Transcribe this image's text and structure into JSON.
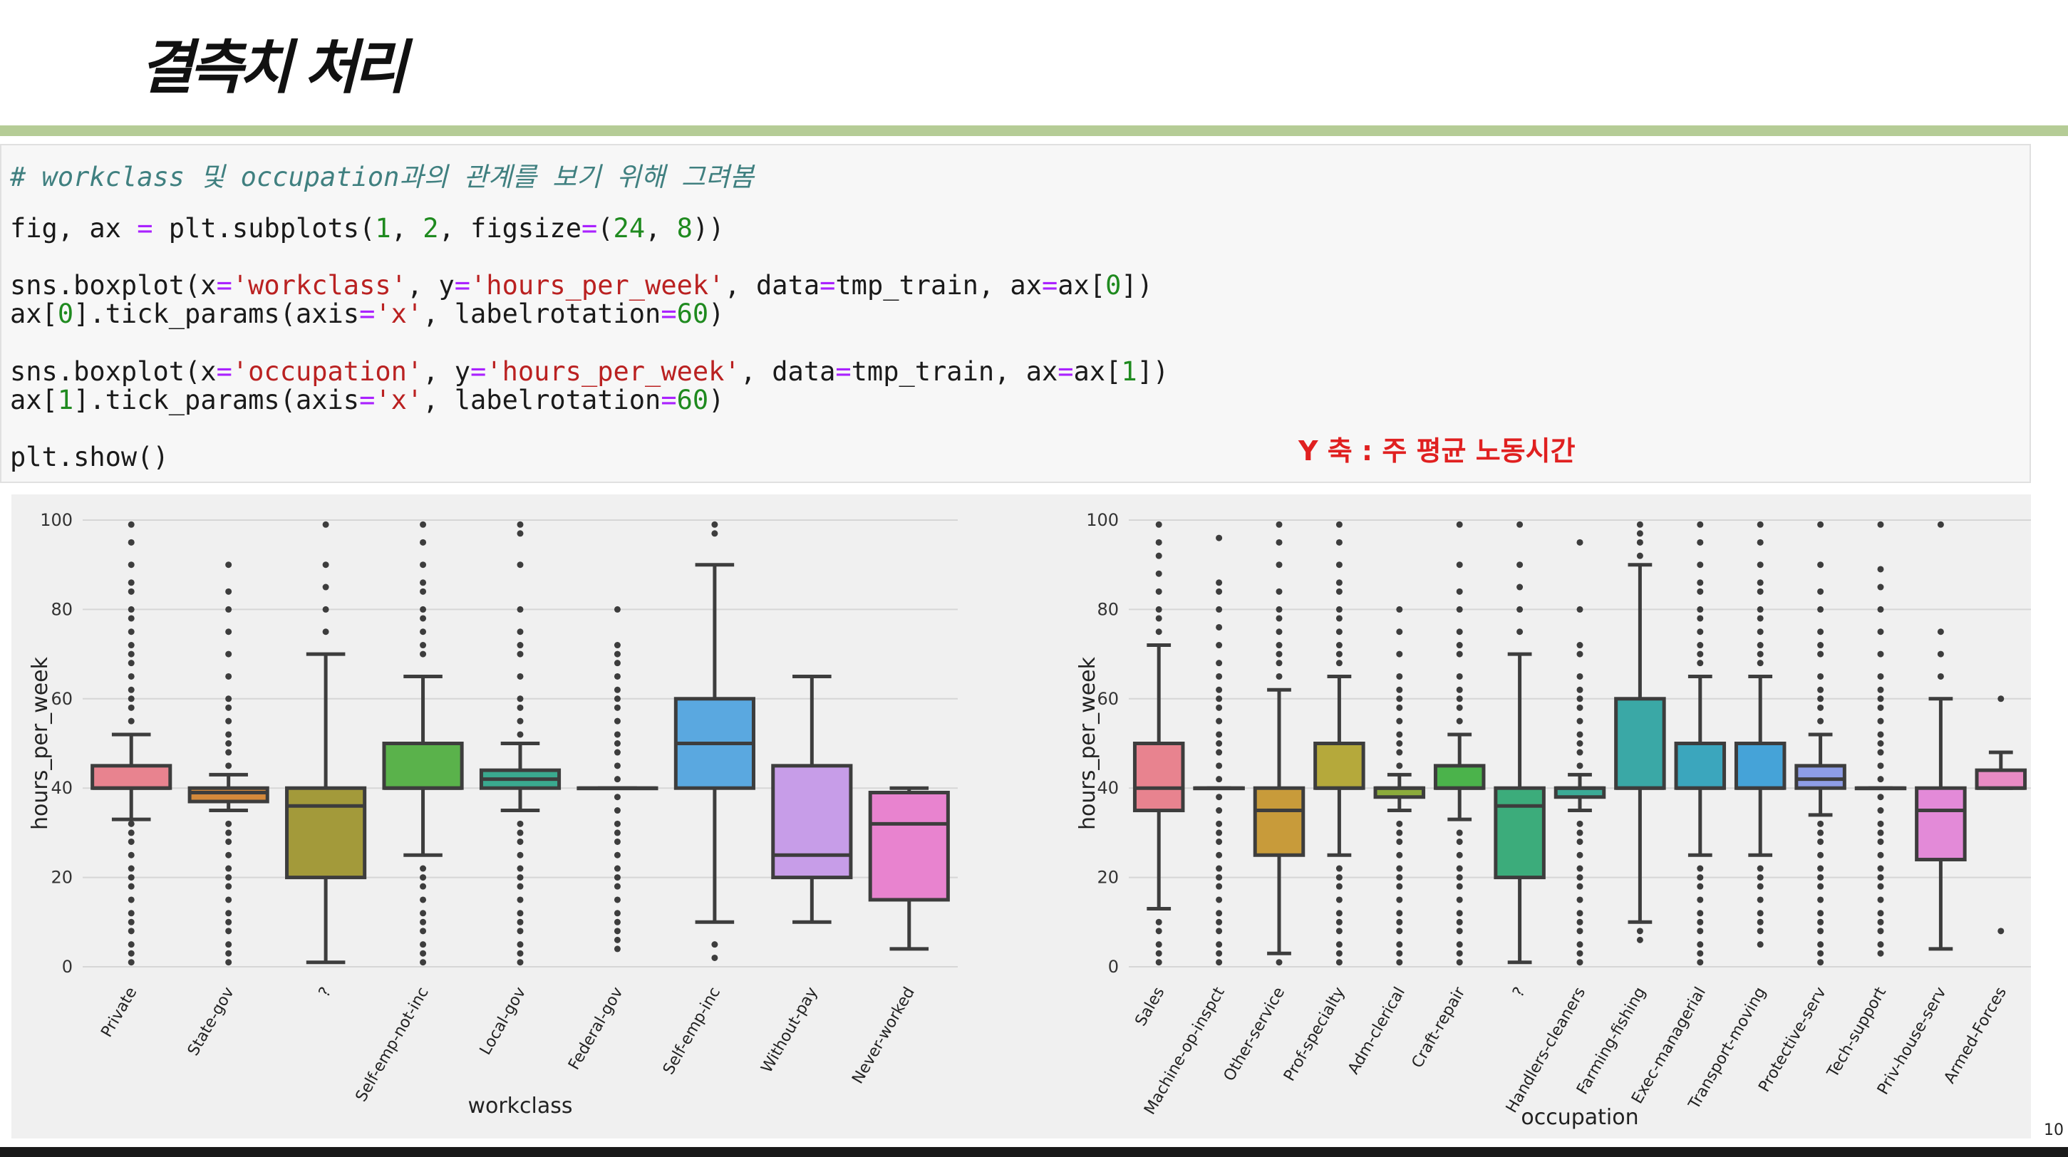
{
  "slide": {
    "title": "결측치 처리",
    "annotation": "Y 축 : 주 평균 노동시간",
    "page_number": "10"
  },
  "code": {
    "comment": "# workclass 및 occupation과의 관계를 보기 위해 그려봄",
    "line2": {
      "a": "fig, ax ",
      "eq": "=",
      "b": " plt.subplots(",
      "n1": "1",
      "c": ", ",
      "n2": "2",
      "d": ", figsize",
      "eq2": "=",
      "e": "(",
      "n3": "24",
      "f": ", ",
      "n4": "8",
      "g": "))"
    },
    "line3": {
      "a": "sns.boxplot(x",
      "eq": "=",
      "s1": "'workclass'",
      "b": ", y",
      "eq2": "=",
      "s2": "'hours_per_week'",
      "c": ", data",
      "eq3": "=",
      "d": "tmp_train, ax",
      "eq4": "=",
      "e": "ax[",
      "n": "0",
      "f": "])"
    },
    "line4": {
      "a": "ax[",
      "n": "0",
      "b": "].tick_params(axis",
      "eq": "=",
      "s": "'x'",
      "c": ", labelrotation",
      "eq2": "=",
      "n2": "60",
      "d": ")"
    },
    "line5": {
      "a": "sns.boxplot(x",
      "eq": "=",
      "s1": "'occupation'",
      "b": ", y",
      "eq2": "=",
      "s2": "'hours_per_week'",
      "c": ", data",
      "eq3": "=",
      "d": "tmp_train, ax",
      "eq4": "=",
      "e": "ax[",
      "n": "1",
      "f": "])"
    },
    "line6": {
      "a": "ax[",
      "n": "1",
      "b": "].tick_params(axis",
      "eq": "=",
      "s": "'x'",
      "c": ", labelrotation",
      "eq2": "=",
      "n2": "60",
      "d": ")"
    },
    "line7": "plt.show()"
  },
  "chart_data": [
    {
      "type": "box",
      "xlabel": "workclass",
      "ylabel": "hours_per_week",
      "ylim": [
        0,
        100
      ],
      "yticks": [
        0,
        20,
        40,
        60,
        80,
        100
      ],
      "grid": true,
      "categories": [
        "Private",
        "State-gov",
        "?",
        "Self-emp-not-inc",
        "Local-gov",
        "Federal-gov",
        "Self-emp-inc",
        "Without-pay",
        "Never-worked"
      ],
      "boxes": [
        {
          "q1": 40,
          "median": 40,
          "q3": 45,
          "whisker_low": 33,
          "whisker_high": 52,
          "color": "#e8838f",
          "outliers": [
            1,
            3,
            5,
            8,
            10,
            12,
            15,
            18,
            20,
            22,
            25,
            28,
            30,
            32,
            55,
            58,
            60,
            62,
            65,
            68,
            70,
            72,
            75,
            78,
            80,
            84,
            86,
            90,
            95,
            99
          ]
        },
        {
          "q1": 37,
          "median": 39,
          "q3": 40,
          "whisker_low": 35,
          "whisker_high": 43,
          "color": "#d4893b",
          "outliers": [
            1,
            3,
            5,
            8,
            10,
            12,
            15,
            18,
            20,
            22,
            25,
            28,
            30,
            32,
            45,
            48,
            50,
            52,
            55,
            58,
            60,
            65,
            70,
            75,
            80,
            84,
            90
          ]
        },
        {
          "q1": 20,
          "median": 36,
          "q3": 40,
          "whisker_low": 1,
          "whisker_high": 70,
          "color": "#a39a3a",
          "outliers": [
            75,
            80,
            85,
            90,
            99
          ]
        },
        {
          "q1": 40,
          "median": 40,
          "q3": 50,
          "whisker_low": 25,
          "whisker_high": 65,
          "color": "#5ab24b",
          "outliers": [
            1,
            3,
            5,
            8,
            10,
            12,
            15,
            18,
            20,
            22,
            70,
            72,
            75,
            78,
            80,
            84,
            86,
            90,
            95,
            99
          ]
        },
        {
          "q1": 40,
          "median": 42,
          "q3": 44,
          "whisker_low": 35,
          "whisker_high": 50,
          "color": "#3aa98f",
          "outliers": [
            1,
            3,
            5,
            8,
            10,
            12,
            15,
            18,
            20,
            22,
            25,
            28,
            30,
            32,
            52,
            55,
            58,
            60,
            65,
            70,
            72,
            75,
            80,
            90,
            97,
            99
          ]
        },
        {
          "q1": 40,
          "median": 40,
          "q3": 40,
          "whisker_low": 40,
          "whisker_high": 40,
          "color": "#3ba6a8",
          "outliers": [
            4,
            6,
            8,
            10,
            12,
            15,
            18,
            20,
            22,
            25,
            28,
            30,
            32,
            35,
            38,
            42,
            45,
            48,
            50,
            52,
            55,
            58,
            60,
            62,
            65,
            68,
            70,
            72,
            80
          ]
        },
        {
          "q1": 40,
          "median": 50,
          "q3": 60,
          "whisker_low": 10,
          "whisker_high": 90,
          "color": "#5aa8e0",
          "outliers": [
            2,
            5,
            97,
            99
          ]
        },
        {
          "q1": 20,
          "median": 25,
          "q3": 45,
          "whisker_low": 10,
          "whisker_high": 65,
          "color": "#c79de8",
          "outliers": []
        },
        {
          "q1": 15,
          "median": 32,
          "q3": 39,
          "whisker_low": 4,
          "whisker_high": 40,
          "color": "#e883cf",
          "outliers": []
        }
      ]
    },
    {
      "type": "box",
      "xlabel": "occupation",
      "ylabel": "hours_per_week",
      "ylim": [
        0,
        100
      ],
      "yticks": [
        0,
        20,
        40,
        60,
        80,
        100
      ],
      "grid": true,
      "categories": [
        "Sales",
        "Machine-op-inspct",
        "Other-service",
        "Prof-specialty",
        "Adm-clerical",
        "Craft-repair",
        "?",
        "Handlers-cleaners",
        "Farming-fishing",
        "Exec-managerial",
        "Transport-moving",
        "Protective-serv",
        "Tech-support",
        "Priv-house-serv",
        "Armed-Forces"
      ],
      "boxes": [
        {
          "q1": 35,
          "median": 40,
          "q3": 50,
          "whisker_low": 13,
          "whisker_high": 72,
          "color": "#e8838f",
          "outliers": [
            1,
            3,
            5,
            8,
            10,
            75,
            78,
            80,
            84,
            88,
            92,
            95,
            99
          ]
        },
        {
          "q1": 40,
          "median": 40,
          "q3": 40,
          "whisker_low": 40,
          "whisker_high": 40,
          "color": "#d98d3e",
          "outliers": [
            1,
            3,
            5,
            8,
            10,
            12,
            15,
            18,
            20,
            22,
            25,
            28,
            30,
            32,
            35,
            38,
            42,
            45,
            48,
            50,
            52,
            55,
            58,
            60,
            62,
            65,
            68,
            72,
            76,
            80,
            84,
            86,
            96
          ]
        },
        {
          "q1": 25,
          "median": 35,
          "q3": 40,
          "whisker_low": 3,
          "whisker_high": 62,
          "color": "#c89b3a",
          "outliers": [
            1,
            65,
            68,
            70,
            72,
            75,
            78,
            80,
            84,
            90,
            95,
            99
          ]
        },
        {
          "q1": 40,
          "median": 40,
          "q3": 50,
          "whisker_low": 25,
          "whisker_high": 65,
          "color": "#b5a93b",
          "outliers": [
            1,
            3,
            5,
            8,
            10,
            12,
            15,
            18,
            20,
            22,
            68,
            70,
            72,
            75,
            78,
            80,
            84,
            86,
            90,
            95,
            99
          ]
        },
        {
          "q1": 38,
          "median": 40,
          "q3": 40,
          "whisker_low": 35,
          "whisker_high": 43,
          "color": "#8bab3b",
          "outliers": [
            1,
            3,
            5,
            8,
            10,
            12,
            15,
            18,
            20,
            22,
            25,
            28,
            30,
            32,
            45,
            48,
            50,
            52,
            55,
            58,
            60,
            62,
            65,
            70,
            75,
            80
          ]
        },
        {
          "q1": 40,
          "median": 40,
          "q3": 45,
          "whisker_low": 33,
          "whisker_high": 52,
          "color": "#4bb34b",
          "outliers": [
            1,
            3,
            5,
            8,
            10,
            12,
            15,
            18,
            20,
            22,
            25,
            28,
            30,
            55,
            58,
            60,
            62,
            65,
            70,
            72,
            75,
            80,
            84,
            90,
            99
          ]
        },
        {
          "q1": 20,
          "median": 36,
          "q3": 40,
          "whisker_low": 1,
          "whisker_high": 70,
          "color": "#3cac7b",
          "outliers": [
            75,
            80,
            85,
            90,
            99
          ]
        },
        {
          "q1": 38,
          "median": 40,
          "q3": 40,
          "whisker_low": 35,
          "whisker_high": 43,
          "color": "#3bab96",
          "outliers": [
            1,
            3,
            5,
            8,
            10,
            12,
            15,
            18,
            20,
            22,
            25,
            28,
            30,
            32,
            45,
            48,
            50,
            52,
            55,
            58,
            60,
            62,
            65,
            70,
            72,
            80,
            95
          ]
        },
        {
          "q1": 40,
          "median": 40,
          "q3": 60,
          "whisker_low": 10,
          "whisker_high": 90,
          "color": "#3aa8a6",
          "outliers": [
            6,
            8,
            92,
            95,
            97,
            99
          ]
        },
        {
          "q1": 40,
          "median": 40,
          "q3": 50,
          "whisker_low": 25,
          "whisker_high": 65,
          "color": "#3ba6bd",
          "outliers": [
            1,
            3,
            5,
            8,
            10,
            12,
            15,
            18,
            20,
            22,
            68,
            70,
            72,
            75,
            78,
            80,
            84,
            86,
            90,
            95,
            99
          ]
        },
        {
          "q1": 40,
          "median": 40,
          "q3": 50,
          "whisker_low": 25,
          "whisker_high": 65,
          "color": "#45a3d8",
          "outliers": [
            5,
            8,
            10,
            12,
            15,
            18,
            20,
            22,
            68,
            70,
            72,
            75,
            78,
            80,
            84,
            86,
            90,
            95,
            99
          ]
        },
        {
          "q1": 40,
          "median": 42,
          "q3": 45,
          "whisker_low": 34,
          "whisker_high": 52,
          "color": "#8e9de6",
          "outliers": [
            1,
            3,
            5,
            8,
            10,
            12,
            15,
            18,
            20,
            22,
            25,
            28,
            30,
            32,
            55,
            58,
            60,
            62,
            65,
            70,
            72,
            75,
            80,
            84,
            90,
            99
          ]
        },
        {
          "q1": 40,
          "median": 40,
          "q3": 40,
          "whisker_low": 40,
          "whisker_high": 40,
          "color": "#b795e6",
          "outliers": [
            3,
            5,
            8,
            10,
            12,
            15,
            18,
            20,
            22,
            25,
            28,
            30,
            32,
            35,
            38,
            42,
            45,
            48,
            50,
            52,
            55,
            58,
            60,
            62,
            65,
            70,
            75,
            80,
            85,
            89,
            99
          ]
        },
        {
          "q1": 24,
          "median": 35,
          "q3": 40,
          "whisker_low": 4,
          "whisker_high": 60,
          "color": "#e38ad8",
          "outliers": [
            65,
            70,
            75,
            99
          ]
        },
        {
          "q1": 40,
          "median": 40,
          "q3": 44,
          "whisker_low": 40,
          "whisker_high": 48,
          "color": "#e98bc4",
          "outliers": [
            8,
            60
          ]
        }
      ]
    }
  ]
}
